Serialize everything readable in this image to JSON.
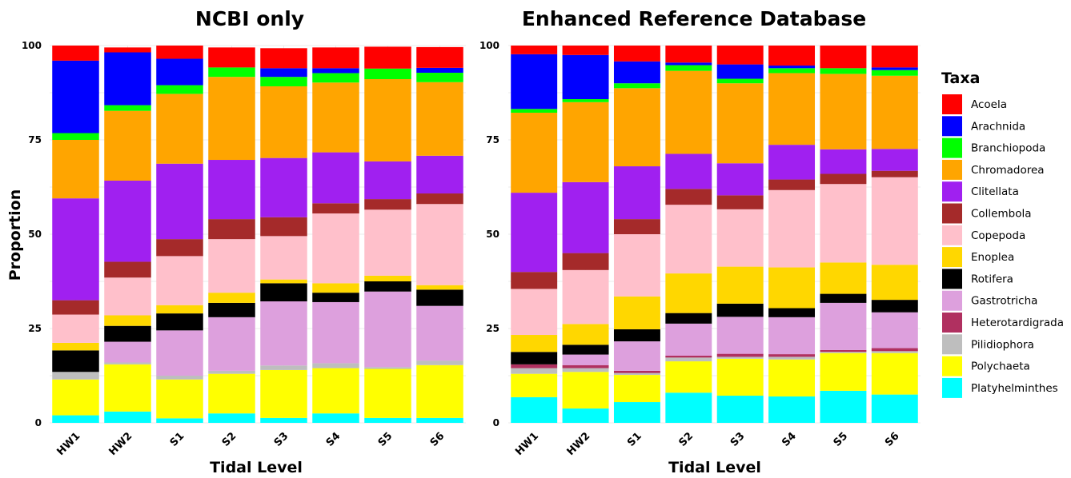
{
  "chart_data": {
    "type": "bar",
    "stacked": true,
    "ylabel": "Proportion",
    "ylim": [
      0,
      100
    ],
    "yticks": [
      0,
      25,
      50,
      75,
      100
    ],
    "grid": true,
    "legend": {
      "title": "Taxa",
      "placement": "right",
      "entries": [
        "Acoela",
        "Arachnida",
        "Branchiopoda",
        "Chromadorea",
        "Clitellata",
        "Collembola",
        "Copepoda",
        "Enoplea",
        "Rotifera",
        "Gastrotricha",
        "Heterotardigrada",
        "Pilidiophora",
        "Polychaeta",
        "Platyhelminthes"
      ]
    },
    "series_colors": {
      "Acoela": "#FF0000",
      "Arachnida": "#0000FF",
      "Branchiopoda": "#00FF00",
      "Chromadorea": "#FFA500",
      "Clitellata": "#A020F0",
      "Collembola": "#A52A2A",
      "Copepoda": "#FFC0CB",
      "Enoplea": "#FFD700",
      "Rotifera": "#000000",
      "Gastrotricha": "#DDA0DD",
      "Heterotardigrada": "#B03060",
      "Pilidiophora": "#BEBEBE",
      "Polychaeta": "#FFFF00",
      "Platyhelminthes": "#00FFFF"
    },
    "stack_order": [
      "Platyhelminthes",
      "Polychaeta",
      "Pilidiophora",
      "Heterotardigrada",
      "Gastrotricha",
      "Rotifera",
      "Enoplea",
      "Copepoda",
      "Collembola",
      "Clitellata",
      "Chromadorea",
      "Branchiopoda",
      "Arachnida",
      "Acoela"
    ],
    "panels": [
      {
        "title": "NCBI only",
        "xlabel": "Tidal Level",
        "categories": [
          "HW1",
          "HW2",
          "S1",
          "S2",
          "S3",
          "S4",
          "S5",
          "S6"
        ],
        "series": [
          {
            "name": "Platyhelminthes",
            "values": [
              2,
              3,
              1.2,
              2.5,
              1.3,
              2.5,
              1.3,
              1.3
            ]
          },
          {
            "name": "Polychaeta",
            "values": [
              9.5,
              12.5,
              10.3,
              10.5,
              12.7,
              12,
              13,
              14
            ]
          },
          {
            "name": "Pilidiophora",
            "values": [
              2,
              0.5,
              1,
              0.8,
              1.2,
              1.3,
              0.5,
              1.2
            ]
          },
          {
            "name": "Heterotardigrada",
            "values": [
              0,
              0,
              0,
              0,
              0,
              0,
              0,
              0
            ]
          },
          {
            "name": "Gastrotricha",
            "values": [
              0,
              5.5,
              12,
              14.2,
              17,
              16.2,
              20,
              14.5
            ]
          },
          {
            "name": "Rotifera",
            "values": [
              5.7,
              4.2,
              4.5,
              3.8,
              4.8,
              2.5,
              2.7,
              4.3
            ]
          },
          {
            "name": "Enoplea",
            "values": [
              2,
              2.8,
              2.2,
              2.7,
              1,
              2.5,
              1.5,
              1.2
            ]
          },
          {
            "name": "Copepoda",
            "values": [
              7.5,
              10,
              13,
              14.2,
              11.5,
              18.5,
              17.5,
              21.5
            ]
          },
          {
            "name": "Collembola",
            "values": [
              3.8,
              4.2,
              4.5,
              5.3,
              5,
              2.7,
              2.8,
              2.8
            ]
          },
          {
            "name": "Clitellata",
            "values": [
              27,
              21.5,
              20,
              15.7,
              15.7,
              13.5,
              10,
              10
            ]
          },
          {
            "name": "Chromadorea",
            "values": [
              15.5,
              18.5,
              18.5,
              22,
              19,
              18.5,
              21.8,
              19.5
            ]
          },
          {
            "name": "Branchiopoda",
            "values": [
              1.8,
              1.5,
              2.3,
              2.5,
              2.5,
              2.5,
              2.8,
              2.5
            ]
          },
          {
            "name": "Arachnida",
            "values": [
              19.2,
              14,
              7,
              0,
              2.3,
              1.3,
              0,
              1.3
            ]
          },
          {
            "name": "Acoela",
            "values": [
              4,
              1.3,
              3.5,
              5.3,
              5.3,
              5.5,
              5.8,
              5.5
            ]
          }
        ]
      },
      {
        "title": "Enhanced Reference Database",
        "xlabel": "Tidal Level",
        "categories": [
          "HW1",
          "HW2",
          "S1",
          "S2",
          "S3",
          "S4",
          "S5",
          "S6"
        ],
        "series": [
          {
            "name": "Platyhelminthes",
            "values": [
              6.8,
              3.8,
              5.5,
              8,
              7.2,
              7,
              8.5,
              7.5
            ]
          },
          {
            "name": "Polychaeta",
            "values": [
              6.2,
              9.7,
              7.2,
              8.3,
              9.8,
              9.8,
              10,
              11
            ]
          },
          {
            "name": "Pilidiophora",
            "values": [
              1.5,
              1,
              0.5,
              1,
              0.5,
              0.7,
              0.3,
              0.5
            ]
          },
          {
            "name": "Heterotardigrada",
            "values": [
              1,
              0.8,
              0.6,
              0.5,
              0.8,
              0.7,
              0.5,
              0.8
            ]
          },
          {
            "name": "Gastrotricha",
            "values": [
              0,
              2.8,
              7.8,
              8.5,
              9.8,
              9.8,
              12.5,
              9.5
            ]
          },
          {
            "name": "Rotifera",
            "values": [
              3.3,
              2.6,
              3.2,
              2.8,
              3.5,
              2.4,
              2.4,
              3.3
            ]
          },
          {
            "name": "Enoplea",
            "values": [
              4.5,
              5.5,
              8.7,
              10.5,
              9.8,
              10.8,
              8.3,
              9.3
            ]
          },
          {
            "name": "Copepoda",
            "values": [
              12.2,
              14.3,
              16.5,
              18.2,
              15.2,
              20.5,
              20.8,
              23.2
            ]
          },
          {
            "name": "Collembola",
            "values": [
              4.5,
              4.5,
              4,
              4.2,
              3.7,
              2.8,
              2.7,
              1.7
            ]
          },
          {
            "name": "Clitellata",
            "values": [
              21,
              18.8,
              14,
              9.3,
              8.5,
              9.2,
              6.5,
              5.8
            ]
          },
          {
            "name": "Chromadorea",
            "values": [
              21.2,
              21.2,
              20.7,
              22,
              21.2,
              19,
              20,
              19.4
            ]
          },
          {
            "name": "Branchiopoda",
            "values": [
              1,
              0.8,
              1.3,
              1.5,
              1.2,
              1.3,
              1.5,
              1.5
            ]
          },
          {
            "name": "Arachnida",
            "values": [
              14.5,
              11.7,
              5.8,
              0.7,
              3.8,
              0.7,
              0,
              0.7
            ]
          },
          {
            "name": "Acoela",
            "values": [
              2.3,
              2.5,
              4.2,
              4.5,
              5,
              5.3,
              6,
              5.8
            ]
          }
        ]
      }
    ]
  }
}
